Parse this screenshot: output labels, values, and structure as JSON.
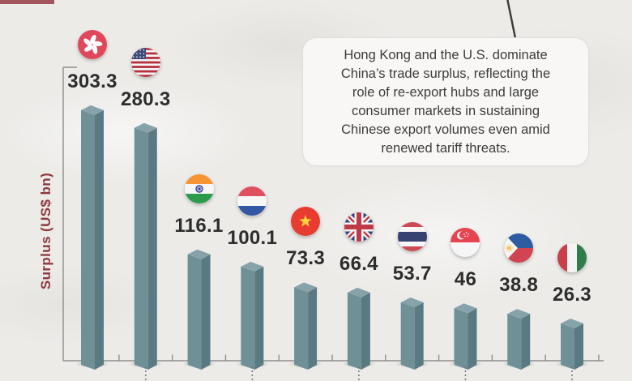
{
  "brand": {
    "accent_bar_color": "#a4565e"
  },
  "callout": {
    "text": "Hong Kong and the U.S. dominate\nChina’s trade surplus, reflecting the\nrole of re-export hubs and large\nconsumer markets in sustaining\nChinese export volumes even amid\nrenewed tariff threats.",
    "text_color": "#3c3c3c",
    "background": "#f8f7f5"
  },
  "chart_data": {
    "type": "bar",
    "title": "",
    "xlabel": "",
    "ylabel": "Surplus (US$ bn)",
    "ylim": [
      0,
      320
    ],
    "grid": false,
    "legend": false,
    "categories": [
      "Hong Kong",
      "United States",
      "India",
      "Netherlands",
      "Vietnam",
      "United Kingdom",
      "Thailand",
      "Singapore",
      "Philippines",
      "Italy"
    ],
    "values": [
      303.3,
      280.3,
      116.1,
      100.1,
      73.3,
      66.4,
      53.7,
      46,
      38.8,
      26.3
    ],
    "value_labels": [
      "303.3",
      "280.3",
      "116.1",
      "100.1",
      "73.3",
      "66.4",
      "53.7",
      "46",
      "38.8",
      "26.3"
    ],
    "flags": [
      "hong-kong-flag",
      "united-states-flag",
      "india-flag",
      "netherlands-flag",
      "vietnam-flag",
      "united-kingdom-flag",
      "thailand-flag",
      "singapore-flag",
      "philippines-flag",
      "italy-flag"
    ],
    "colors": {
      "background": "#ecebe8",
      "bar_front": "#6f9097",
      "bar_side": "#597a82",
      "bar_top": "#87a3a9",
      "axis": "#8f8f8f",
      "leader_dots": "#777777",
      "value_label": "#2d2d2d",
      "ylabel": "#8e3a3e",
      "pointer_line": "#3f3f3f"
    }
  }
}
